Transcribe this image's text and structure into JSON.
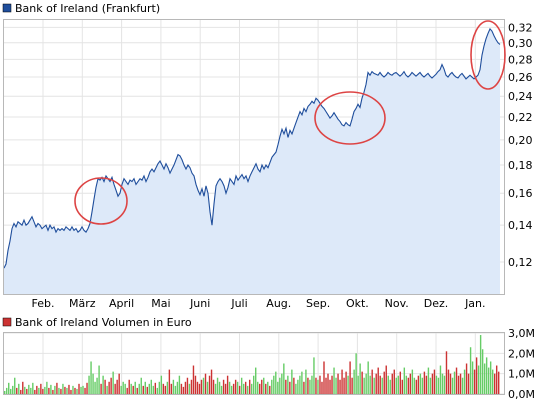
{
  "price_chart": {
    "legend_label": "Bank of Ireland (Frankfurt)",
    "line_color": "#1f4e9c",
    "fill_color": "#dde9f9",
    "legend_color": "#1f4e9c"
  },
  "volume_chart": {
    "legend_label": "Bank of Ireland Volumen in Euro",
    "legend_color": "#cc3333",
    "up_color": "#66cc66",
    "down_color": "#cc3333"
  },
  "annotation_color": "#dd4444",
  "chart_data": [
    {
      "type": "area",
      "series": [
        {
          "name": "Bank of Ireland (Frankfurt)",
          "values": [
            0.117,
            0.119,
            0.126,
            0.131,
            0.138,
            0.141,
            0.139,
            0.142,
            0.141,
            0.14,
            0.143,
            0.14,
            0.141,
            0.143,
            0.145,
            0.142,
            0.139,
            0.141,
            0.14,
            0.138,
            0.139,
            0.14,
            0.137,
            0.14,
            0.138,
            0.139,
            0.136,
            0.138,
            0.137,
            0.138,
            0.137,
            0.139,
            0.138,
            0.137,
            0.139,
            0.137,
            0.138,
            0.136,
            0.137,
            0.139,
            0.137,
            0.136,
            0.138,
            0.141,
            0.148,
            0.156,
            0.164,
            0.17,
            0.169,
            0.171,
            0.168,
            0.172,
            0.17,
            0.168,
            0.171,
            0.166,
            0.162,
            0.158,
            0.16,
            0.166,
            0.17,
            0.168,
            0.166,
            0.169,
            0.168,
            0.17,
            0.166,
            0.168,
            0.17,
            0.169,
            0.172,
            0.168,
            0.171,
            0.175,
            0.177,
            0.175,
            0.178,
            0.181,
            0.183,
            0.18,
            0.177,
            0.181,
            0.178,
            0.174,
            0.177,
            0.18,
            0.184,
            0.188,
            0.187,
            0.184,
            0.18,
            0.177,
            0.18,
            0.178,
            0.174,
            0.172,
            0.166,
            0.162,
            0.159,
            0.163,
            0.158,
            0.165,
            0.16,
            0.148,
            0.14,
            0.153,
            0.165,
            0.168,
            0.17,
            0.168,
            0.165,
            0.16,
            0.164,
            0.17,
            0.168,
            0.166,
            0.172,
            0.169,
            0.171,
            0.173,
            0.17,
            0.172,
            0.168,
            0.172,
            0.175,
            0.178,
            0.181,
            0.177,
            0.175,
            0.18,
            0.177,
            0.18,
            0.178,
            0.182,
            0.186,
            0.188,
            0.19,
            0.196,
            0.203,
            0.209,
            0.205,
            0.21,
            0.202,
            0.208,
            0.205,
            0.21,
            0.215,
            0.22,
            0.225,
            0.222,
            0.228,
            0.225,
            0.23,
            0.232,
            0.235,
            0.233,
            0.238,
            0.236,
            0.233,
            0.23,
            0.228,
            0.225,
            0.222,
            0.219,
            0.221,
            0.224,
            0.221,
            0.218,
            0.216,
            0.213,
            0.212,
            0.215,
            0.213,
            0.212,
            0.218,
            0.225,
            0.228,
            0.232,
            0.229,
            0.238,
            0.244,
            0.252,
            0.265,
            0.262,
            0.266,
            0.264,
            0.263,
            0.262,
            0.265,
            0.262,
            0.26,
            0.262,
            0.265,
            0.263,
            0.262,
            0.264,
            0.265,
            0.263,
            0.261,
            0.263,
            0.266,
            0.262,
            0.26,
            0.262,
            0.265,
            0.263,
            0.261,
            0.263,
            0.265,
            0.262,
            0.26,
            0.262,
            0.264,
            0.261,
            0.259,
            0.261,
            0.263,
            0.266,
            0.268,
            0.274,
            0.269,
            0.262,
            0.26,
            0.263,
            0.265,
            0.262,
            0.26,
            0.259,
            0.262,
            0.264,
            0.261,
            0.258,
            0.26,
            0.262,
            0.26,
            0.258,
            0.26,
            0.262,
            0.268,
            0.285,
            0.296,
            0.305,
            0.312,
            0.318,
            0.315,
            0.309,
            0.304,
            0.3,
            0.298
          ]
        }
      ],
      "x_tick_labels": [
        "Feb.",
        "März",
        "April",
        "Mai",
        "Juni",
        "Juli",
        "Aug.",
        "Sep.",
        "Okt.",
        "Nov.",
        "Dez.",
        "Jan."
      ],
      "y_tick_labels": [
        "0,12",
        "0,14",
        "0,16",
        "0,18",
        "0,20",
        "0,22",
        "0,24",
        "0,26",
        "0,28",
        "0,30",
        "0,32"
      ],
      "y_scale": "log",
      "ylim": [
        0.105,
        0.33
      ],
      "grid": true,
      "legend": "top-left"
    },
    {
      "type": "bar",
      "series": [
        {
          "name": "Bank of Ireland Volumen in Euro",
          "values": [
            0.15,
            0.3,
            0.55,
            0.25,
            0.4,
            0.8,
            0.3,
            0.5,
            0.2,
            0.6,
            0.35,
            0.25,
            0.45,
            0.3,
            0.55,
            0.2,
            0.4,
            0.3,
            0.5,
            0.25,
            0.35,
            0.6,
            0.3,
            0.45,
            0.2,
            0.4,
            0.55,
            0.3,
            0.25,
            0.5,
            0.35,
            0.3,
            0.45,
            0.2,
            0.4,
            0.3,
            0.25,
            0.5,
            0.35,
            0.4,
            0.3,
            0.55,
            0.9,
            1.6,
            1.0,
            0.6,
            0.8,
            1.4,
            0.5,
            0.9,
            0.7,
            0.4,
            0.6,
            0.8,
            1.1,
            0.5,
            0.7,
            1.0,
            0.4,
            0.6,
            0.5,
            0.3,
            0.7,
            0.5,
            0.4,
            0.6,
            0.3,
            0.5,
            0.8,
            0.4,
            0.6,
            0.35,
            0.5,
            0.7,
            0.4,
            0.55,
            0.3,
            0.6,
            0.9,
            0.5,
            0.4,
            0.6,
            1.2,
            0.5,
            0.7,
            0.4,
            0.6,
            0.9,
            0.5,
            0.35,
            0.6,
            0.8,
            0.5,
            0.7,
            1.4,
            0.9,
            0.6,
            0.5,
            0.7,
            0.8,
            1.0,
            0.6,
            0.9,
            1.2,
            0.7,
            0.5,
            0.8,
            0.6,
            0.4,
            0.7,
            0.5,
            0.9,
            0.6,
            0.4,
            0.5,
            0.7,
            0.6,
            0.4,
            0.8,
            0.5,
            0.6,
            0.4,
            0.7,
            0.5,
            0.9,
            1.3,
            0.6,
            0.5,
            0.7,
            0.8,
            0.5,
            0.6,
            0.4,
            0.7,
            0.9,
            1.1,
            0.6,
            0.8,
            1.0,
            1.5,
            0.7,
            0.9,
            0.6,
            1.2,
            0.8,
            0.5,
            0.7,
            0.9,
            1.1,
            0.6,
            1.2,
            0.8,
            0.7,
            0.9,
            1.8,
            0.8,
            0.7,
            0.9,
            0.6,
            1.6,
            0.8,
            1.0,
            0.7,
            0.9,
            1.3,
            0.8,
            1.0,
            0.7,
            1.2,
            0.8,
            1.1,
            0.9,
            1.6,
            0.8,
            1.2,
            2.0,
            0.9,
            1.5,
            1.1,
            0.8,
            1.0,
            1.6,
            0.9,
            1.2,
            0.8,
            1.0,
            1.3,
            0.9,
            0.8,
            1.1,
            1.4,
            0.9,
            0.7,
            1.0,
            1.2,
            0.8,
            0.9,
            1.1,
            0.7,
            1.3,
            0.9,
            0.8,
            1.0,
            1.2,
            0.8,
            0.7,
            0.9,
            1.0,
            0.8,
            1.1,
            0.9,
            1.3,
            0.8,
            1.0,
            1.2,
            0.9,
            0.8,
            1.4,
            1.0,
            0.9,
            2.1,
            1.2,
            1.0,
            0.8,
            1.1,
            1.3,
            0.9,
            1.0,
            0.8,
            1.2,
            1.5,
            1.0,
            2.3,
            1.6,
            1.2,
            1.8,
            1.4,
            2.9,
            2.2,
            1.5,
            1.8,
            1.3,
            1.6,
            1.2,
            1.0,
            1.4,
            1.1
          ]
        }
      ],
      "y_tick_labels": [
        "0,0M",
        "1,0M",
        "2,0M",
        "3,0M"
      ],
      "ylim": [
        0,
        3.0
      ],
      "grid": true,
      "legend": "top-left"
    }
  ]
}
